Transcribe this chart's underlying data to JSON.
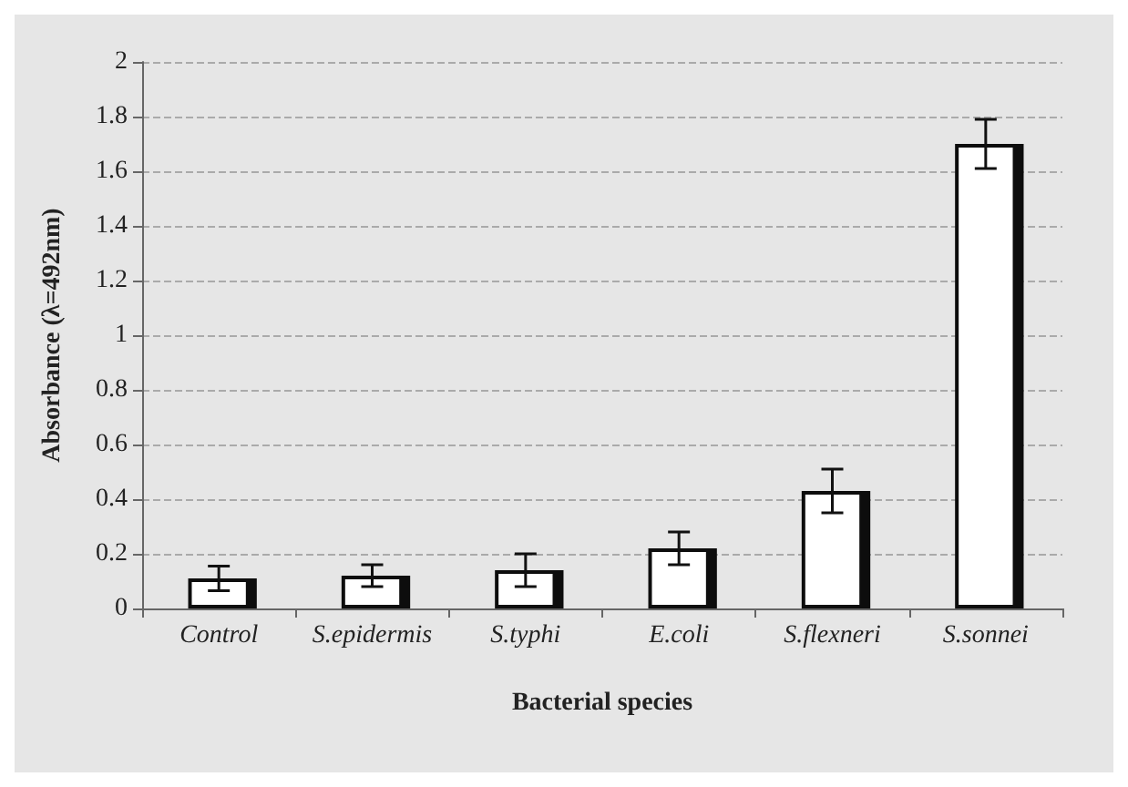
{
  "chart_data": {
    "type": "bar",
    "xlabel": "Bacterial species",
    "ylabel": "Absorbance (λ=492nm)",
    "categories": [
      "Control",
      "S.epidermis",
      "S.typhi",
      "E.coli",
      "S.flexneri",
      "S.sonnei"
    ],
    "values": [
      0.11,
      0.12,
      0.14,
      0.22,
      0.43,
      1.7
    ],
    "errors": [
      0.045,
      0.04,
      0.06,
      0.06,
      0.08,
      0.09
    ],
    "color": "#ffffff",
    "ylim": [
      0,
      2
    ],
    "yticks": [
      0,
      0.2,
      0.4,
      0.6,
      0.8,
      1,
      1.2,
      1.4,
      1.6,
      1.8,
      2
    ],
    "grid": "y"
  }
}
